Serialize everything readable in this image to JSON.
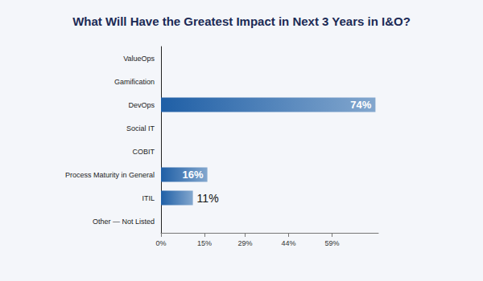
{
  "chart_data": {
    "type": "bar",
    "orientation": "horizontal",
    "title": "What Will Have the Greatest Impact in Next 3 Years in I&O?",
    "categories": [
      "ValueOps",
      "Gamification",
      "DevOps",
      "Social IT",
      "COBIT",
      "Process Maturity in General",
      "ITIL",
      "Other — Not Listed"
    ],
    "values": [
      0,
      0,
      74,
      0,
      0,
      16,
      11,
      0
    ],
    "value_labels": [
      null,
      null,
      "74%",
      null,
      null,
      "16%",
      "11%",
      null
    ],
    "data_labels": true,
    "color": "#1f5fa6",
    "xlim": [
      0,
      75
    ],
    "xticks": [
      {
        "value": 0,
        "label": "0%"
      },
      {
        "value": 15,
        "label": "15%"
      },
      {
        "value": 29,
        "label": "29%"
      },
      {
        "value": 44,
        "label": "44%"
      },
      {
        "value": 59,
        "label": "59%"
      }
    ],
    "grid": false
  }
}
